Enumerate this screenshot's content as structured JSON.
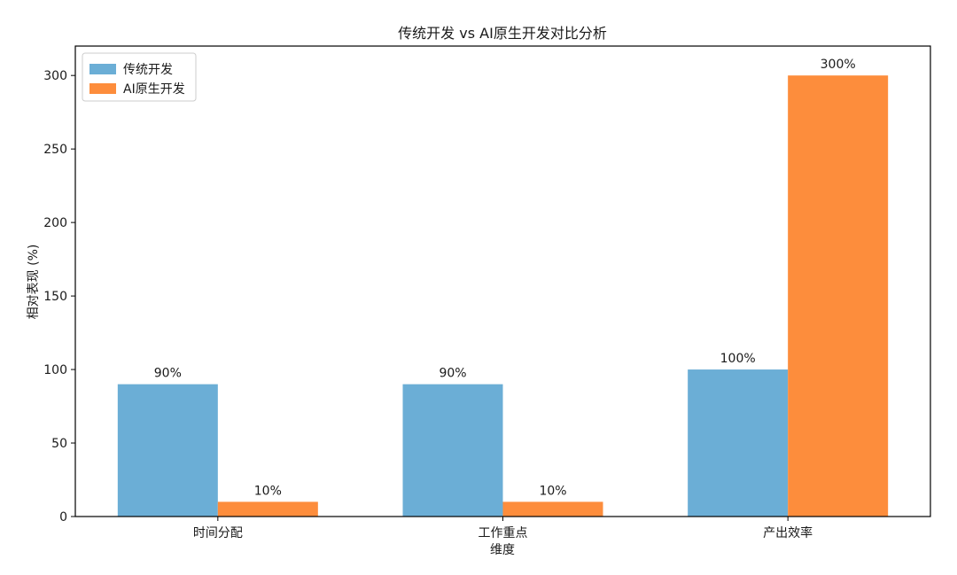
{
  "chart_data": {
    "type": "bar",
    "title": "传统开发 vs AI原生开发对比分析",
    "xlabel": "维度",
    "ylabel": "相对表现 (%)",
    "categories": [
      "时间分配",
      "工作重点",
      "产出效率"
    ],
    "series": [
      {
        "name": "传统开发",
        "values": [
          90,
          90,
          100
        ],
        "labels": [
          "90%",
          "90%",
          "100%"
        ],
        "color": "#6baed6"
      },
      {
        "name": "AI原生开发",
        "values": [
          10,
          10,
          300
        ],
        "labels": [
          "10%",
          "10%",
          "300%"
        ],
        "color": "#fd8d3c"
      }
    ],
    "ylim": [
      0,
      320
    ],
    "yticks": [
      0,
      50,
      100,
      150,
      200,
      250,
      300
    ],
    "legend_position": "top-left",
    "grid": false
  }
}
